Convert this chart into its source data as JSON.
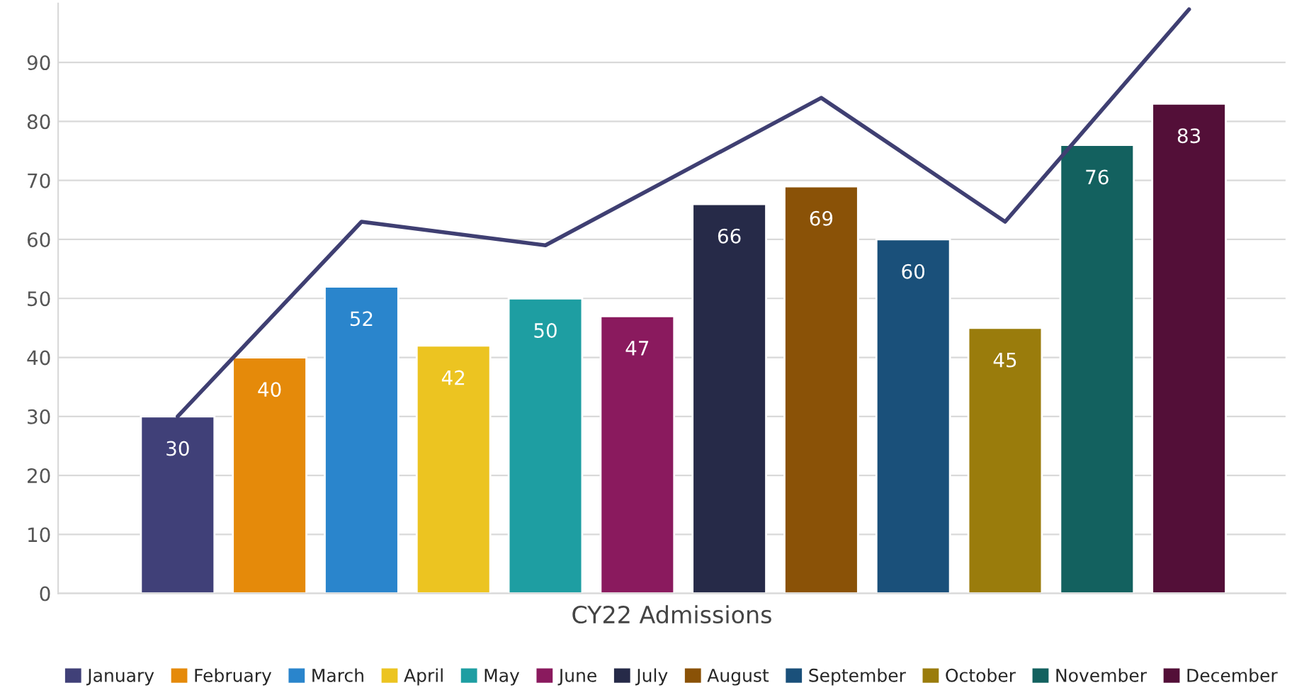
{
  "chart_data": {
    "type": "bar",
    "xlabel": "CY22 Admissions",
    "stacked": true,
    "categories": [
      null,
      null,
      null,
      null,
      null,
      null,
      null,
      null,
      null,
      null,
      null,
      null
    ],
    "series": [
      {
        "name": "January",
        "color": "#404078",
        "values": [
          30,
          null,
          null,
          null,
          null,
          null,
          null,
          null,
          null,
          null,
          null,
          null
        ],
        "value_labels": [
          "30",
          null,
          null,
          null,
          null,
          null,
          null,
          null,
          null,
          null,
          null,
          null
        ]
      },
      {
        "name": "February",
        "color": "#e58a0a",
        "values": [
          null,
          40,
          null,
          null,
          null,
          null,
          null,
          null,
          null,
          null,
          null,
          null
        ],
        "value_labels": [
          null,
          "40",
          null,
          null,
          null,
          null,
          null,
          null,
          null,
          null,
          null,
          null
        ]
      },
      {
        "name": "March",
        "color": "#2a85cc",
        "values": [
          null,
          null,
          52,
          null,
          null,
          null,
          null,
          null,
          null,
          null,
          null,
          null
        ],
        "value_labels": [
          null,
          null,
          "52",
          null,
          null,
          null,
          null,
          null,
          null,
          null,
          null,
          null
        ]
      },
      {
        "name": "April",
        "color": "#ecc421",
        "values": [
          null,
          null,
          null,
          42,
          null,
          null,
          null,
          null,
          null,
          null,
          null,
          null
        ],
        "value_labels": [
          null,
          null,
          null,
          "42",
          null,
          null,
          null,
          null,
          null,
          null,
          null,
          null
        ]
      },
      {
        "name": "May",
        "color": "#1e9ea2",
        "values": [
          null,
          null,
          null,
          null,
          50,
          null,
          null,
          null,
          null,
          null,
          null,
          null
        ],
        "value_labels": [
          null,
          null,
          null,
          null,
          "50",
          null,
          null,
          null,
          null,
          null,
          null,
          null
        ]
      },
      {
        "name": "June",
        "color": "#8a1a5e",
        "values": [
          null,
          null,
          null,
          null,
          null,
          47,
          null,
          null,
          null,
          null,
          null,
          null
        ],
        "value_labels": [
          null,
          null,
          null,
          null,
          null,
          "47",
          null,
          null,
          null,
          null,
          null,
          null
        ]
      },
      {
        "name": "July",
        "color": "#262a48",
        "values": [
          null,
          null,
          null,
          null,
          null,
          null,
          66,
          null,
          null,
          null,
          null,
          null
        ],
        "value_labels": [
          null,
          null,
          null,
          null,
          null,
          null,
          "66",
          null,
          null,
          null,
          null,
          null
        ]
      },
      {
        "name": "August",
        "color": "#8a5207",
        "values": [
          null,
          null,
          null,
          null,
          null,
          null,
          null,
          69,
          null,
          null,
          null,
          null
        ],
        "value_labels": [
          null,
          null,
          null,
          null,
          null,
          null,
          null,
          "69",
          null,
          null,
          null,
          null
        ]
      },
      {
        "name": "September",
        "color": "#1a507a",
        "values": [
          null,
          null,
          null,
          null,
          null,
          null,
          null,
          null,
          60,
          null,
          null,
          null
        ],
        "value_labels": [
          null,
          null,
          null,
          null,
          null,
          null,
          null,
          null,
          "60",
          null,
          null,
          null
        ]
      },
      {
        "name": "October",
        "color": "#9a7c0c",
        "values": [
          null,
          null,
          null,
          null,
          null,
          null,
          null,
          null,
          null,
          45,
          null,
          null
        ],
        "value_labels": [
          null,
          null,
          null,
          null,
          null,
          null,
          null,
          null,
          null,
          "45",
          null,
          null
        ]
      },
      {
        "name": "November",
        "color": "#13615f",
        "values": [
          null,
          null,
          null,
          null,
          null,
          null,
          null,
          null,
          null,
          null,
          76,
          null
        ],
        "value_labels": [
          null,
          null,
          null,
          null,
          null,
          null,
          null,
          null,
          null,
          null,
          "76",
          null
        ]
      },
      {
        "name": "December",
        "color": "#530f38",
        "values": [
          null,
          null,
          null,
          null,
          null,
          null,
          null,
          null,
          null,
          null,
          null,
          83
        ],
        "value_labels": [
          null,
          null,
          null,
          null,
          null,
          null,
          null,
          null,
          null,
          null,
          null,
          "83"
        ]
      },
      {
        "type": "line",
        "color": "#3f3f72",
        "values": [
          30,
          null,
          63,
          null,
          59,
          null,
          null,
          84,
          null,
          63,
          null,
          99
        ]
      }
    ],
    "ylim": [
      0,
      100
    ],
    "yticks": [
      0,
      10,
      20,
      30,
      40,
      50,
      60,
      70,
      80,
      90
    ],
    "grid": "y",
    "legend": "bottom",
    "tick_labels": "y",
    "line_style": "solid"
  }
}
